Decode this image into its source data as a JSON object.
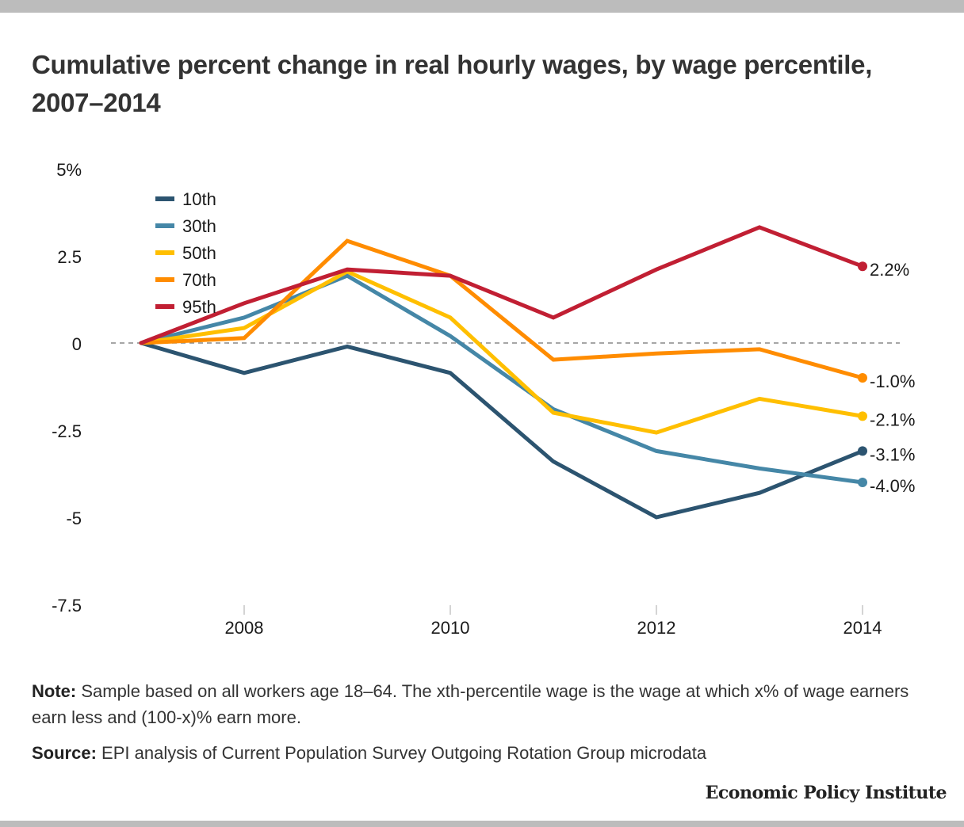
{
  "header": {
    "title": "Cumulative percent change in real hourly wages, by wage percentile, 2007–2014"
  },
  "chart_data": {
    "type": "line",
    "title": "Cumulative percent change in real hourly wages, by wage percentile, 2007–2014",
    "xlabel": "",
    "ylabel": "",
    "x": [
      2007,
      2008,
      2009,
      2010,
      2011,
      2012,
      2013,
      2014
    ],
    "x_ticks": [
      2008,
      2010,
      2012,
      2014
    ],
    "x_tick_labels": [
      "2008",
      "2010",
      "2012",
      "2014"
    ],
    "xlim": [
      2007,
      2014
    ],
    "y_ticks": [
      5,
      2.5,
      0,
      -2.5,
      -5,
      -7.5
    ],
    "y_tick_labels": [
      "5%",
      "2.5",
      "0",
      "-2.5",
      "-5",
      "-7.5"
    ],
    "ylim": [
      -7.5,
      5
    ],
    "zero_line": "dashed",
    "grid": false,
    "legend_position": "top-left",
    "series": [
      {
        "name": "10th",
        "color": "#2c5470",
        "values": [
          0,
          -0.86,
          -0.1,
          -0.86,
          -3.4,
          -5.0,
          -4.3,
          -3.1
        ],
        "end_label": "-3.1%"
      },
      {
        "name": "30th",
        "color": "#4587a7",
        "values": [
          0,
          0.73,
          1.93,
          0.2,
          -1.9,
          -3.1,
          -3.6,
          -4.0
        ],
        "end_label": "-4.0%"
      },
      {
        "name": "50th",
        "color": "#ffbf00",
        "values": [
          0,
          0.43,
          2.05,
          0.73,
          -2.0,
          -2.57,
          -1.6,
          -2.1
        ],
        "end_label": "-2.1%"
      },
      {
        "name": "70th",
        "color": "#ff8c00",
        "values": [
          0,
          0.14,
          2.93,
          1.93,
          -0.48,
          -0.3,
          -0.18,
          -1.0
        ],
        "end_label": "-1.0%"
      },
      {
        "name": "95th",
        "color": "#c11f33",
        "values": [
          0,
          1.14,
          2.11,
          1.93,
          0.73,
          2.11,
          3.32,
          2.2
        ],
        "end_label": "2.2%"
      }
    ]
  },
  "footer": {
    "note_label": "Note:",
    "note_text": " Sample based on all workers age 18–64. The xth-percentile wage is the wage at which x% of wage earners earn less and (100-x)% earn more.",
    "source_label": "Source:",
    "source_text": " EPI analysis of Current Population Survey Outgoing Rotation Group microdata",
    "logo_text": "Economic Policy Institute"
  }
}
